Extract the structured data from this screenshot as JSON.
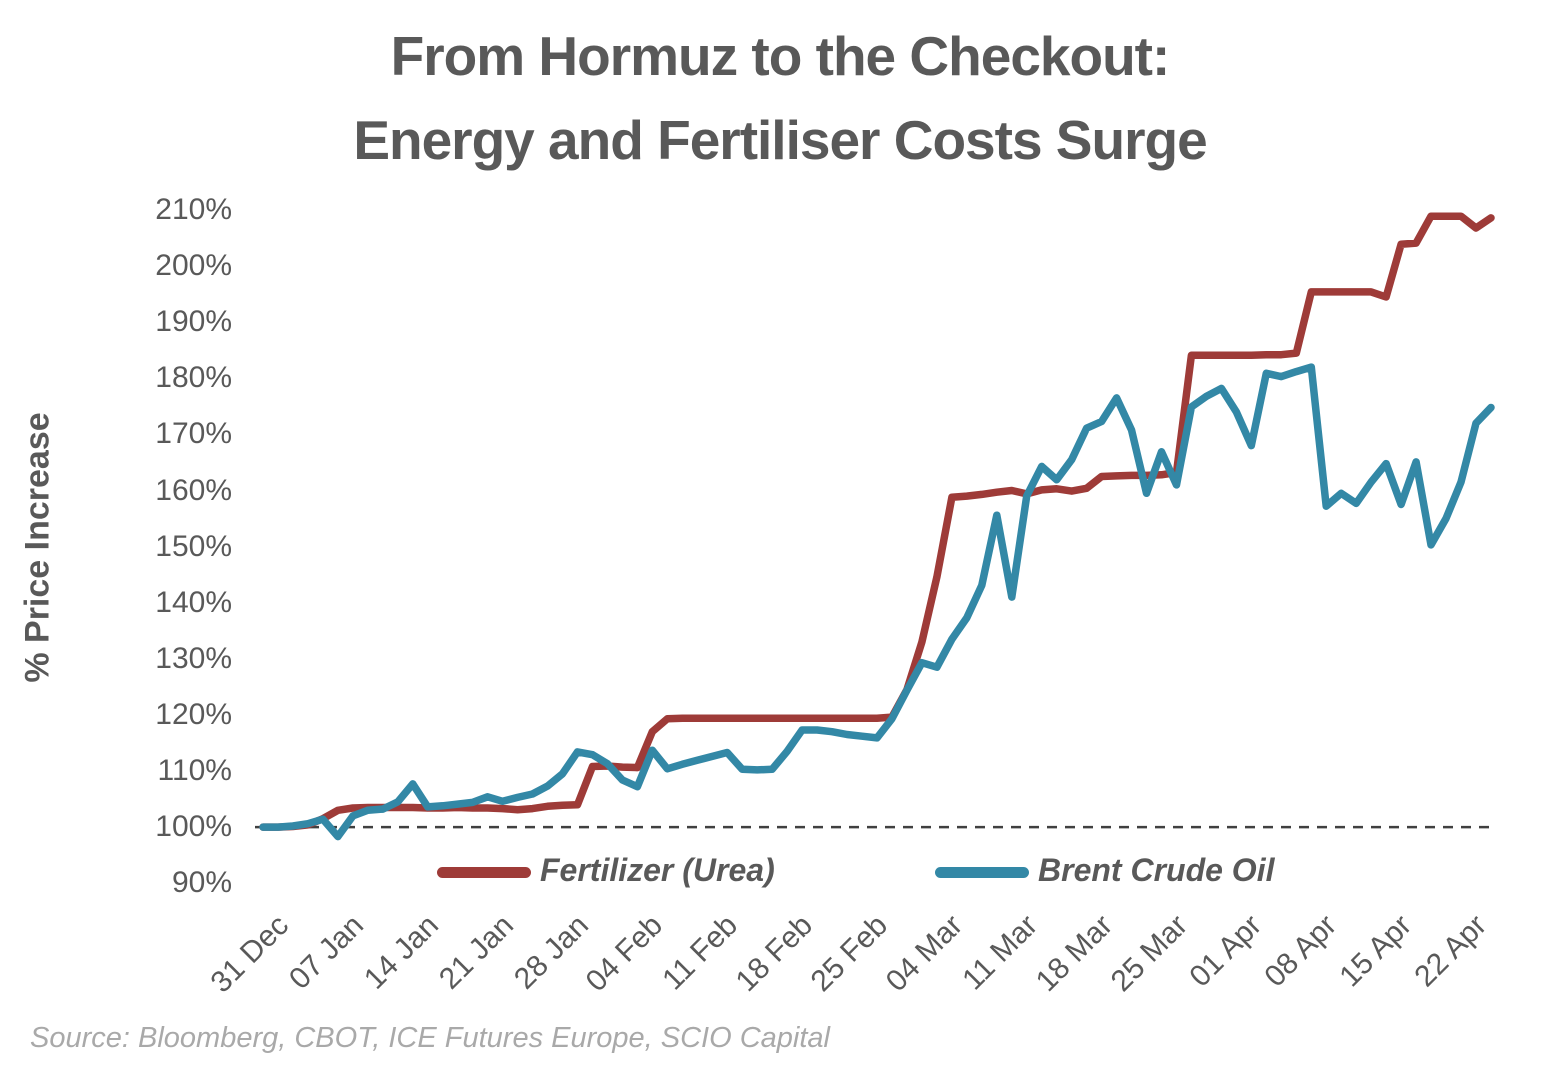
{
  "title": {
    "line1": "From Hormuz to the Checkout:",
    "line2": "Energy and Fertiliser Costs Surge"
  },
  "source": "Source: Bloomberg, CBOT, ICE Futures Europe, SCIO Capital",
  "legend": {
    "item1": "Fertilizer (Urea)",
    "item2": "Brent Crude Oil"
  },
  "colors": {
    "fertilizer": "#9E3B38",
    "brent": "#3388A6",
    "text": "#595959",
    "source_text": "#A9A9A9",
    "baseline": "#404040"
  },
  "chart_data": {
    "type": "line",
    "title": "From Hormuz to the Checkout: Energy and Fertiliser Costs Surge",
    "xlabel": "",
    "ylabel": "% Price Increase",
    "ylim": [
      90,
      210
    ],
    "y_tick_labels": [
      "210%",
      "200%",
      "190%",
      "180%",
      "170%",
      "160%",
      "150%",
      "140%",
      "130%",
      "120%",
      "110%",
      "100%",
      "90%"
    ],
    "x_tick_labels": [
      "31 Dec",
      "07 Jan",
      "14 Jan",
      "21 Jan",
      "28 Jan",
      "04 Feb",
      "11 Feb",
      "18 Feb",
      "25 Feb",
      "04 Mar",
      "11 Mar",
      "18 Mar",
      "25 Mar",
      "01 Apr",
      "08 Apr",
      "15 Apr",
      "22 Apr"
    ],
    "points_per_tick": 5,
    "grid": false,
    "legend_position": "bottom",
    "baseline": {
      "value": 100,
      "style": "dashed"
    },
    "series": [
      {
        "name": "Fertilizer (Urea)",
        "color": "#9E3B38",
        "values": [
          100.0,
          100.0,
          100.1,
          100.4,
          101.5,
          103.0,
          103.4,
          103.5,
          103.5,
          103.5,
          103.5,
          103.4,
          103.4,
          103.5,
          103.4,
          103.4,
          103.3,
          103.1,
          103.3,
          103.7,
          103.9,
          104.0,
          110.8,
          110.9,
          110.7,
          110.6,
          117.0,
          119.3,
          119.4,
          119.4,
          119.4,
          119.4,
          119.4,
          119.4,
          119.4,
          119.4,
          119.4,
          119.4,
          119.4,
          119.4,
          119.4,
          119.4,
          119.6,
          124.5,
          133.0,
          144.6,
          158.8,
          159.0,
          159.3,
          159.7,
          160.0,
          159.4,
          160.1,
          160.3,
          159.9,
          160.4,
          162.5,
          162.6,
          162.7,
          162.7,
          162.8,
          163.2,
          184.1,
          184.1,
          184.1,
          184.1,
          184.1,
          184.2,
          184.2,
          184.5,
          195.4,
          195.4,
          195.4,
          195.4,
          195.4,
          194.5,
          203.9,
          204.1,
          208.9,
          208.9,
          208.9,
          206.8,
          208.6
        ]
      },
      {
        "name": "Brent Crude Oil",
        "color": "#3388A6",
        "values": [
          100.0,
          100.0,
          100.2,
          100.6,
          101.4,
          98.3,
          102.0,
          103.0,
          103.2,
          104.5,
          107.7,
          103.6,
          103.8,
          104.1,
          104.4,
          105.4,
          104.6,
          105.3,
          105.9,
          107.3,
          109.5,
          113.4,
          112.9,
          111.3,
          108.4,
          107.2,
          113.7,
          110.4,
          111.2,
          111.9,
          112.6,
          113.3,
          110.3,
          110.2,
          110.3,
          113.5,
          117.3,
          117.3,
          117.0,
          116.5,
          116.2,
          115.9,
          119.3,
          124.4,
          129.3,
          128.5,
          133.5,
          137.3,
          143.1,
          155.6,
          141.0,
          159.0,
          164.3,
          161.9,
          165.5,
          171.1,
          172.3,
          176.5,
          170.8,
          159.5,
          166.9,
          161.0,
          174.9,
          176.8,
          178.2,
          174.0,
          168.0,
          180.9,
          180.3,
          181.2,
          182.0,
          157.2,
          159.5,
          157.7,
          161.5,
          164.8,
          157.5,
          165.1,
          150.3,
          155.0,
          161.5,
          172.0,
          174.8
        ]
      }
    ]
  }
}
